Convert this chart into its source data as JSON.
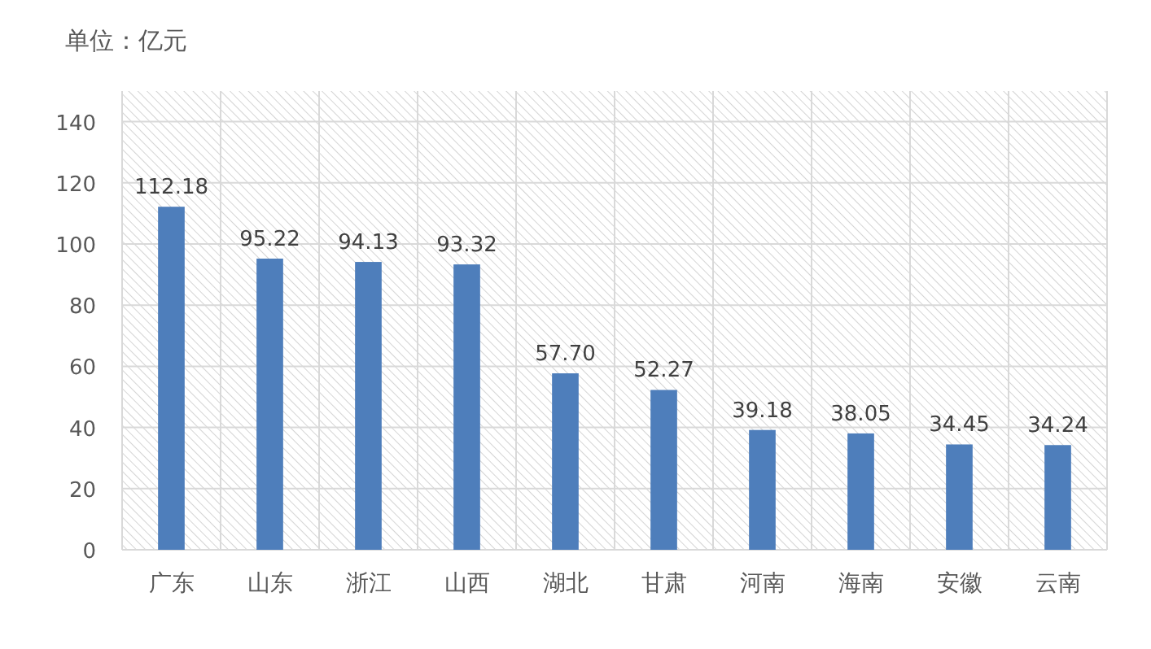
{
  "chart_data": {
    "type": "bar",
    "ylabel": "单位：亿元",
    "categories": [
      "广东",
      "山东",
      "浙江",
      "山西",
      "湖北",
      "甘肃",
      "河南",
      "海南",
      "安徽",
      "云南"
    ],
    "values": [
      112.18,
      95.22,
      94.13,
      93.32,
      57.7,
      52.27,
      39.18,
      38.05,
      34.45,
      34.24
    ],
    "value_labels": [
      "112.18",
      "95.22",
      "94.13",
      "93.32",
      "57.70",
      "52.27",
      "39.18",
      "38.05",
      "34.45",
      "34.24"
    ],
    "color": "#4e7ebb",
    "ylim": [
      0,
      150
    ],
    "yticks": [
      0,
      20,
      40,
      60,
      80,
      100,
      120,
      140
    ],
    "grid": true
  }
}
